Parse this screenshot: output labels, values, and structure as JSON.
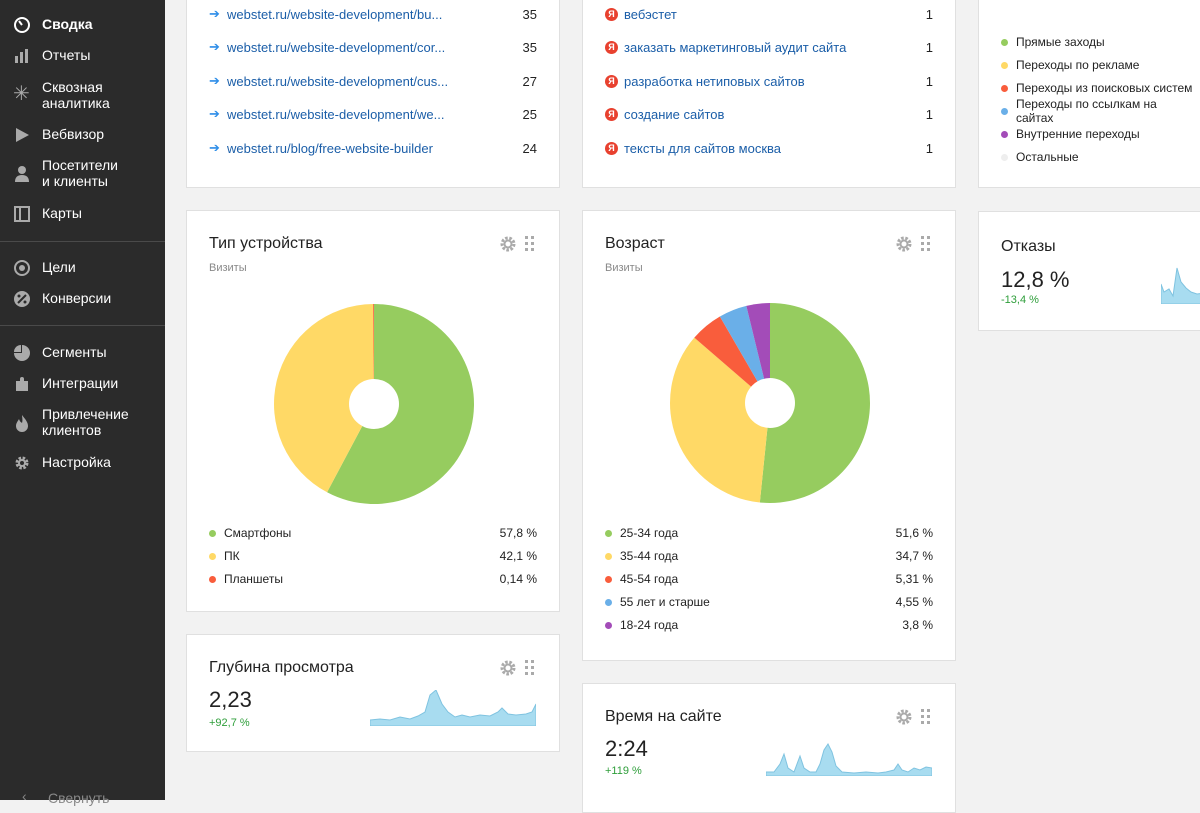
{
  "sidebar": {
    "items": [
      {
        "label": "Сводка",
        "icon": "gauge-icon"
      },
      {
        "label": "Отчеты",
        "icon": "bar-chart-icon"
      },
      {
        "label": "Сквозная\nаналитика",
        "icon": "asterisk-icon"
      },
      {
        "label": "Вебвизор",
        "icon": "play-icon"
      },
      {
        "label": "Посетители\nи клиенты",
        "icon": "person-icon"
      },
      {
        "label": "Карты",
        "icon": "map-icon"
      },
      {
        "label": "Цели",
        "icon": "target-icon"
      },
      {
        "label": "Конверсии",
        "icon": "percent-icon"
      },
      {
        "label": "Сегменты",
        "icon": "pie-icon"
      },
      {
        "label": "Интеграции",
        "icon": "puzzle-icon"
      },
      {
        "label": "Привлечение\nклиентов",
        "icon": "flame-icon"
      },
      {
        "label": "Настройка",
        "icon": "gear-icon"
      }
    ],
    "collapse_label": "Свернуть"
  },
  "pages": {
    "rows": [
      {
        "url": "webstet.ru/website-development/bu...",
        "count": "35"
      },
      {
        "url": "webstet.ru/website-development/cor...",
        "count": "35"
      },
      {
        "url": "webstet.ru/website-development/cus...",
        "count": "27"
      },
      {
        "url": "webstet.ru/website-development/we...",
        "count": "25"
      },
      {
        "url": "webstet.ru/blog/free-website-builder",
        "count": "24"
      }
    ]
  },
  "search_phrases": {
    "rows": [
      {
        "phrase": "вебэстет",
        "count": "1"
      },
      {
        "phrase": "заказать маркетинговый аудит сайта",
        "count": "1"
      },
      {
        "phrase": "разработка нетиповых сайтов",
        "count": "1"
      },
      {
        "phrase": "создание сайтов",
        "count": "1"
      },
      {
        "phrase": "тексты для сайтов москва",
        "count": "1"
      }
    ]
  },
  "traffic_sources": {
    "legend": [
      {
        "label": "Прямые заходы",
        "color": "#96cc5f"
      },
      {
        "label": "Переходы по рекламе",
        "color": "#ffd966"
      },
      {
        "label": "Переходы из поисковых систем",
        "color": "#f95d3c"
      },
      {
        "label": "Переходы по ссылкам на сайтах",
        "color": "#6aafe8"
      },
      {
        "label": "Внутренние переходы",
        "color": "#a34cb8"
      },
      {
        "label": "Остальные",
        "color": "#eeeeee"
      }
    ]
  },
  "device": {
    "title": "Тип устройства",
    "subtitle": "Визиты",
    "legend": [
      {
        "label": "Смартфоны",
        "pct": "57,8 %",
        "color": "#96cc5f"
      },
      {
        "label": "ПК",
        "pct": "42,1 %",
        "color": "#ffd966"
      },
      {
        "label": "Планшеты",
        "pct": "0,14 %",
        "color": "#f95d3c"
      }
    ]
  },
  "age": {
    "title": "Возраст",
    "subtitle": "Визиты",
    "legend": [
      {
        "label": "25-34 года",
        "pct": "51,6 %",
        "color": "#96cc5f"
      },
      {
        "label": "35-44 года",
        "pct": "34,7 %",
        "color": "#ffd966"
      },
      {
        "label": "45-54 года",
        "pct": "5,31 %",
        "color": "#f95d3c"
      },
      {
        "label": "55 лет и старше",
        "pct": "4,55 %",
        "color": "#6aafe8"
      },
      {
        "label": "18-24 года",
        "pct": "3,8 %",
        "color": "#a34cb8"
      }
    ]
  },
  "bounce": {
    "title": "Отказы",
    "value": "12,8 %",
    "delta": "-13,4 %"
  },
  "depth": {
    "title": "Глубина просмотра",
    "value": "2,23",
    "delta": "+92,7 %"
  },
  "time_on_site": {
    "title": "Время на сайте",
    "value": "2:24",
    "delta": "+119 %"
  },
  "colors": {
    "sidebar_bg": "#2b2b2b",
    "link": "#1b5ea8",
    "positive": "#2e9e3a",
    "sparkline": "#a8dcf0"
  },
  "chart_data": [
    {
      "type": "pie",
      "title": "Тип устройства",
      "subtitle": "Визиты",
      "labels": [
        "Смартфоны",
        "ПК",
        "Планшеты"
      ],
      "values": [
        57.8,
        42.1,
        0.14
      ]
    },
    {
      "type": "pie",
      "title": "Возраст",
      "subtitle": "Визиты",
      "labels": [
        "25-34 года",
        "35-44 года",
        "45-54 года",
        "55 лет и старше",
        "18-24 года"
      ],
      "values": [
        51.6,
        34.7,
        5.31,
        4.55,
        3.8
      ]
    }
  ]
}
